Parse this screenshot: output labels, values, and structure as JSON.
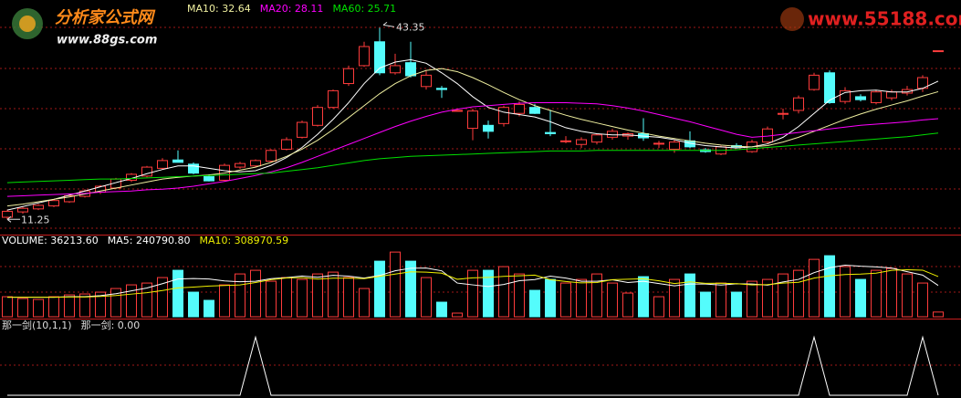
{
  "watermarks": [
    "分析家公式网",
    "www.88gs.com",
    "www.55188.com"
  ],
  "chart_data": [
    {
      "type": "candlestick",
      "ylim": [
        9,
        48
      ],
      "up_color": "#ff3c3c",
      "down_color": "#54fcfc",
      "values": [
        [
          11.6,
          12.9,
          11.25,
          12.6
        ],
        [
          12.5,
          13.3,
          12.2,
          13.1
        ],
        [
          13.0,
          13.8,
          12.8,
          13.6
        ],
        [
          13.5,
          14.6,
          13.3,
          14.4
        ],
        [
          14.2,
          15.4,
          14.0,
          15.2
        ],
        [
          15.1,
          16.3,
          14.9,
          16.0
        ],
        [
          15.8,
          17.0,
          15.5,
          16.8
        ],
        [
          16.5,
          18.2,
          16.3,
          18.0
        ],
        [
          17.8,
          19.0,
          17.5,
          18.8
        ],
        [
          18.5,
          20.2,
          18.3,
          20.0
        ],
        [
          19.8,
          21.5,
          19.6,
          21.1
        ],
        [
          21.2,
          22.8,
          20.9,
          20.8
        ],
        [
          20.5,
          20.8,
          18.8,
          19.0
        ],
        [
          18.4,
          18.8,
          17.6,
          17.7
        ],
        [
          17.8,
          20.6,
          17.6,
          20.3
        ],
        [
          20.0,
          20.9,
          19.7,
          20.6
        ],
        [
          20.2,
          21.3,
          20.0,
          21.1
        ],
        [
          21.0,
          23.0,
          20.8,
          22.8
        ],
        [
          23.0,
          25.0,
          22.8,
          24.6
        ],
        [
          25.0,
          27.8,
          24.8,
          27.5
        ],
        [
          27.0,
          30.4,
          26.8,
          30.0
        ],
        [
          30.0,
          33.0,
          29.8,
          32.8
        ],
        [
          34.0,
          37.0,
          33.6,
          36.5
        ],
        [
          37.0,
          41.0,
          36.8,
          40.2
        ],
        [
          41.0,
          43.35,
          35.4,
          35.8
        ],
        [
          35.8,
          39.0,
          35.5,
          37.0
        ],
        [
          37.5,
          41.0,
          35.0,
          35.3
        ],
        [
          33.5,
          36.2,
          33.0,
          35.4
        ],
        [
          33.2,
          33.6,
          31.6,
          33.0
        ],
        [
          29.5,
          29.6,
          29.4,
          29.5
        ],
        [
          26.5,
          29.8,
          24.5,
          29.4
        ],
        [
          27.0,
          27.8,
          24.8,
          26.0
        ],
        [
          27.3,
          30.3,
          26.8,
          30.0
        ],
        [
          29.0,
          31.0,
          28.5,
          30.5
        ],
        [
          30.0,
          30.6,
          28.9,
          29.0
        ],
        [
          25.8,
          29.6,
          25.2,
          25.6
        ],
        [
          24.4,
          25.2,
          24.0,
          24.4
        ],
        [
          23.8,
          25.0,
          23.2,
          24.6
        ],
        [
          24.2,
          25.6,
          23.8,
          25.4
        ],
        [
          25.0,
          26.4,
          24.6,
          26.0
        ],
        [
          25.2,
          25.8,
          24.6,
          25.6
        ],
        [
          25.6,
          28.2,
          24.4,
          24.9
        ],
        [
          24.0,
          24.4,
          23.2,
          24.0
        ],
        [
          23.0,
          24.6,
          22.4,
          24.2
        ],
        [
          24.4,
          26.0,
          23.2,
          23.4
        ],
        [
          22.9,
          23.2,
          22.4,
          22.6
        ],
        [
          22.2,
          23.6,
          22.0,
          23.4
        ],
        [
          23.6,
          24.0,
          23.2,
          23.4
        ],
        [
          22.6,
          24.6,
          22.4,
          24.2
        ],
        [
          24.2,
          26.8,
          24.0,
          26.4
        ],
        [
          29.0,
          29.8,
          28.0,
          29.0
        ],
        [
          29.5,
          32.0,
          29.0,
          31.6
        ],
        [
          33.0,
          35.8,
          32.8,
          35.4
        ],
        [
          35.8,
          36.2,
          30.6,
          30.8
        ],
        [
          31.0,
          33.4,
          30.6,
          32.8
        ],
        [
          31.8,
          32.2,
          31.0,
          31.3
        ],
        [
          30.8,
          32.9,
          30.5,
          32.6
        ],
        [
          31.6,
          33.0,
          31.2,
          32.6
        ],
        [
          32.4,
          33.6,
          32.0,
          33.0
        ],
        [
          33.2,
          35.4,
          32.6,
          35.0
        ],
        [
          39.5,
          39.5,
          39.5,
          39.5
        ]
      ],
      "annotations": [
        43.35,
        11.25
      ],
      "series": [
        {
          "color": "#ffffff",
          "values": [
            12.8,
            13.4,
            14.0,
            14.6,
            15.3,
            16.0,
            16.7,
            17.4,
            18.1,
            18.9,
            19.6,
            20.2,
            20.2,
            19.8,
            19.4,
            19.2,
            19.4,
            20.3,
            21.6,
            23.3,
            25.5,
            28.0,
            30.8,
            34.0,
            36.6,
            37.6,
            38.0,
            37.4,
            35.8,
            34.0,
            31.8,
            30.0,
            29.2,
            28.8,
            28.4,
            27.6,
            26.6,
            26.0,
            25.6,
            25.4,
            25.4,
            25.2,
            25.0,
            24.6,
            24.0,
            23.6,
            23.4,
            23.2,
            23.4,
            23.9,
            25.0,
            26.8,
            29.0,
            31.2,
            32.5,
            32.8,
            32.9,
            32.6,
            32.6,
            33.2,
            34.4
          ]
        },
        {
          "name": "MA10: 32.64",
          "color": "#f0f0a0",
          "values": [
            13.5,
            13.8,
            14.2,
            14.6,
            15.0,
            15.5,
            16.0,
            16.5,
            17.0,
            17.5,
            18.0,
            18.3,
            18.5,
            18.7,
            19.0,
            19.5,
            20.0,
            20.8,
            21.8,
            23.0,
            24.5,
            26.3,
            28.3,
            30.3,
            32.3,
            34.0,
            35.3,
            36.2,
            36.5,
            36.0,
            35.0,
            33.8,
            32.5,
            31.3,
            30.3,
            29.5,
            28.7,
            28.0,
            27.4,
            26.8,
            26.2,
            25.7,
            25.2,
            24.8,
            24.4,
            24.0,
            23.7,
            23.5,
            23.4,
            23.6,
            24.2,
            25.0,
            26.0,
            27.0,
            28.0,
            28.9,
            29.7,
            30.4,
            31.1,
            31.9,
            32.64
          ]
        },
        {
          "name": "MA20: 28.11",
          "color": "#ff00ff",
          "values": [
            15.1,
            15.2,
            15.3,
            15.4,
            15.5,
            15.6,
            15.8,
            15.9,
            16.0,
            16.2,
            16.3,
            16.5,
            16.8,
            17.2,
            17.6,
            18.1,
            18.6,
            19.2,
            19.9,
            20.8,
            21.8,
            22.8,
            23.8,
            24.8,
            25.8,
            26.8,
            27.7,
            28.5,
            29.2,
            29.7,
            30.1,
            30.3,
            30.5,
            30.7,
            30.8,
            30.8,
            30.8,
            30.7,
            30.6,
            30.3,
            29.9,
            29.4,
            28.8,
            28.2,
            27.6,
            26.9,
            26.2,
            25.5,
            25.0,
            25.2,
            25.5,
            25.8,
            26.1,
            26.4,
            26.7,
            27.0,
            27.2,
            27.4,
            27.6,
            27.9,
            28.11
          ]
        },
        {
          "name": "MA60: 25.71",
          "color": "#00e000",
          "values": [
            17.4,
            17.5,
            17.6,
            17.7,
            17.8,
            17.9,
            18.0,
            18.0,
            18.1,
            18.2,
            18.3,
            18.4,
            18.5,
            18.6,
            18.7,
            18.8,
            18.9,
            19.0,
            19.3,
            19.6,
            19.9,
            20.3,
            20.7,
            21.1,
            21.4,
            21.6,
            21.8,
            21.9,
            22.0,
            22.1,
            22.2,
            22.3,
            22.4,
            22.5,
            22.6,
            22.7,
            22.7,
            22.7,
            22.8,
            22.8,
            22.8,
            22.8,
            22.8,
            22.8,
            22.8,
            22.8,
            22.8,
            22.9,
            23.1,
            23.3,
            23.5,
            23.7,
            23.9,
            24.1,
            24.3,
            24.5,
            24.7,
            24.9,
            25.1,
            25.4,
            25.71
          ]
        }
      ]
    },
    {
      "type": "bar",
      "ylim": [
        0,
        540000
      ],
      "series": [
        {
          "name": "VOLUME: 36213.60",
          "color": "#ffffff",
          "values": [
            154000,
            140000,
            133000,
            154000,
            168000,
            175000,
            189000,
            217000,
            245000,
            259000,
            301000,
            357000,
            189000,
            126000,
            245000,
            329000,
            357000,
            273000,
            301000,
            287000,
            329000,
            343000,
            301000,
            217000,
            427000,
            497000,
            427000,
            301000,
            112000,
            28000,
            357000,
            357000,
            385000,
            329000,
            203000,
            287000,
            259000,
            287000,
            329000,
            259000,
            182000,
            308000,
            154000,
            287000,
            329000,
            189000,
            259000,
            189000,
            273000,
            287000,
            329000,
            357000,
            441000,
            469000,
            385000,
            287000,
            357000,
            371000,
            329000,
            259000,
            36213.6
          ]
        },
        {
          "name": "MA5: 240790.80",
          "color": "#ffffff",
          "values": [
            150000,
            150000,
            150000,
            150000,
            154000,
            154000,
            162000,
            177000,
            199000,
            221000,
            254000,
            290000,
            294000,
            290000,
            275000,
            269000,
            273000,
            293000,
            301000,
            313000,
            303000,
            318000,
            312000,
            297000,
            317000,
            353000,
            373000,
            374000,
            353000,
            259000,
            245000,
            232000,
            248000,
            277000,
            286000,
            312000,
            297000,
            273000,
            273000,
            284000,
            263000,
            273000,
            255000,
            238000,
            252000,
            252000,
            244000,
            253000,
            252000,
            243000,
            267000,
            287000,
            339000,
            377000,
            396000,
            388000,
            383000,
            374000,
            346000,
            320000,
            240790.8
          ]
        },
        {
          "name": "MA10: 308970.59",
          "color": "#f0f000",
          "values": [
            150000,
            150000,
            150000,
            150000,
            152000,
            152000,
            156000,
            163000,
            174000,
            185000,
            202000,
            222000,
            228000,
            236000,
            240000,
            245000,
            263000,
            285000,
            298000,
            301000,
            289000,
            296000,
            296000,
            293000,
            310000,
            328000,
            345000,
            343000,
            335000,
            288000,
            299000,
            302000,
            310000,
            315000,
            320000,
            285000,
            271000,
            260000,
            263000,
            285000,
            288000,
            292000,
            276000,
            255000,
            268000,
            257000,
            258000,
            254000,
            245000,
            247000,
            259000,
            265000,
            297000,
            315000,
            324000,
            328000,
            335000,
            357000,
            361000,
            358000,
            308970.59
          ]
        }
      ]
    },
    {
      "type": "line",
      "title": "那一剑(10,1,1)",
      "ylim": [
        0,
        1.1
      ],
      "series": [
        {
          "name": "那一剑: 0.00",
          "color": "#ffffff",
          "values": [
            0,
            0,
            0,
            0,
            0,
            0,
            0,
            0,
            0,
            0,
            0,
            0,
            0,
            0,
            0,
            0,
            1,
            0,
            0,
            0,
            0,
            0,
            0,
            0,
            0,
            0,
            0,
            0,
            0,
            0,
            0,
            0,
            0,
            0,
            0,
            0,
            0,
            0,
            0,
            0,
            0,
            0,
            0,
            0,
            0,
            0,
            0,
            0,
            0,
            0,
            0,
            0,
            1,
            0,
            0,
            0,
            0,
            0,
            0,
            1,
            0
          ]
        }
      ]
    }
  ]
}
